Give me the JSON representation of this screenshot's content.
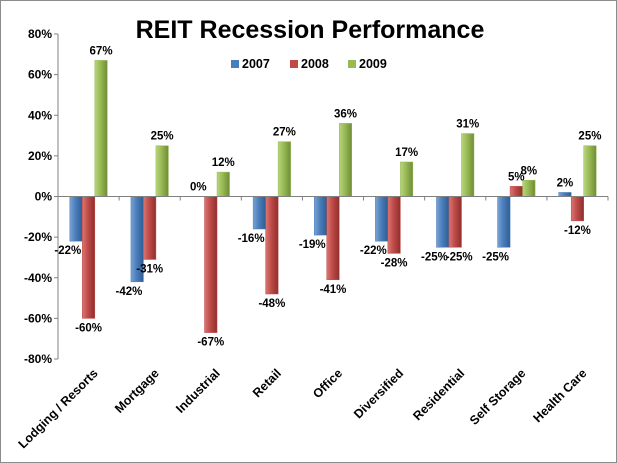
{
  "chart_data": {
    "type": "bar",
    "title": "REIT Recession Performance",
    "xlabel": "",
    "ylabel": "",
    "ylim": [
      -80,
      80
    ],
    "y_ticks": [
      "80%",
      "60%",
      "40%",
      "20%",
      "0%",
      "-20%",
      "-40%",
      "-60%",
      "-80%"
    ],
    "grid": false,
    "legend_position": "top",
    "categories": [
      "Lodging / Resorts",
      "Mortgage",
      "Industrial",
      "Retail",
      "Office",
      "Diversified",
      "Residential",
      "Self Storage",
      "Health Care"
    ],
    "series": [
      {
        "name": "2007",
        "color": "#4a7ebb",
        "values": [
          -22,
          -42,
          0,
          -16,
          -19,
          -22,
          -25,
          -25,
          2
        ],
        "labels": [
          "-22%",
          "-42%",
          "0%",
          "-16%",
          "-19%",
          "-22%",
          "-25%",
          "-25%",
          "2%"
        ]
      },
      {
        "name": "2008",
        "color": "#be4b48",
        "values": [
          -60,
          -31,
          -67,
          -48,
          -41,
          -28,
          -25,
          5,
          -12
        ],
        "labels": [
          "-60%",
          "-31%",
          "-67%",
          "-48%",
          "-41%",
          "-28%",
          "-25%",
          "5%",
          "-12%"
        ]
      },
      {
        "name": "2009",
        "color": "#98b954",
        "values": [
          67,
          25,
          12,
          27,
          36,
          17,
          31,
          8,
          25
        ],
        "labels": [
          "67%",
          "25%",
          "12%",
          "27%",
          "36%",
          "17%",
          "31%",
          "8%",
          "25%"
        ]
      }
    ]
  }
}
